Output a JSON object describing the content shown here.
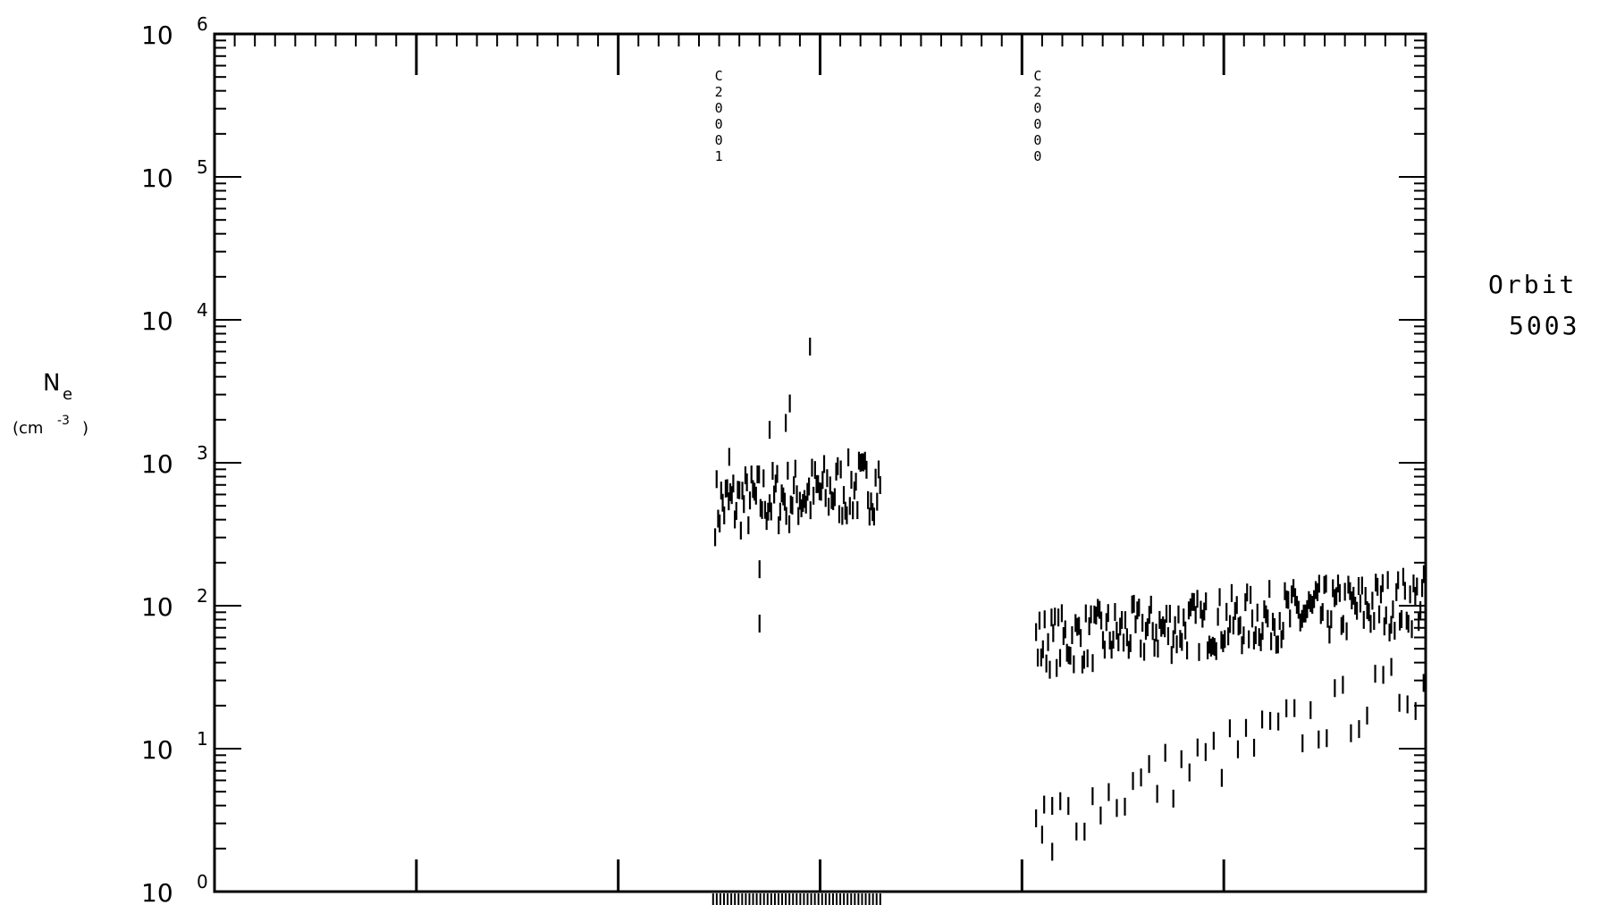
{
  "chart_data": {
    "type": "scatter",
    "title": "",
    "xlabel": "",
    "ylabel": "N",
    "ylabel_subscript": "e",
    "ylabel_units": "(cm",
    "ylabel_units_exp": "-3",
    "ylabel_units_close": ")",
    "yscale": "log",
    "ylim": [
      1,
      1000000
    ],
    "xlim": [
      0,
      6
    ],
    "grid": false,
    "legend": "none",
    "y_ticks": [
      {
        "base": "10",
        "exp": "0",
        "value": 1
      },
      {
        "base": "10",
        "exp": "1",
        "value": 10
      },
      {
        "base": "10",
        "exp": "2",
        "value": 100
      },
      {
        "base": "10",
        "exp": "3",
        "value": 1000
      },
      {
        "base": "10",
        "exp": "4",
        "value": 10000
      },
      {
        "base": "10",
        "exp": "5",
        "value": 100000
      },
      {
        "base": "10",
        "exp": "6",
        "value": 1000000
      }
    ],
    "x_major_ticks": [
      1,
      2,
      3,
      4,
      5
    ],
    "annotations": [
      {
        "text": "C20001",
        "x": 2.5
      },
      {
        "text": "C20000",
        "x": 4.08
      }
    ],
    "side_label": {
      "line1": "Orbit",
      "line2": "5003"
    },
    "marker_color": "#000000",
    "series": [
      {
        "segments": [
          {
            "x_start": 2.48,
            "x_end": 3.3,
            "base": 500,
            "trend": 0.15,
            "noise": 0.22,
            "step": 0.0075
          },
          {
            "x_start": 4.07,
            "x_end": 6.0,
            "base": 55,
            "trend": 0.3,
            "noise": 0.2,
            "step": 0.0085
          },
          {
            "x_start": 4.07,
            "x_end": 6.0,
            "base": 3,
            "trend": 1.0,
            "noise": 0.2,
            "step": 0.04
          }
        ],
        "points": [
          [
            2.95,
            6500
          ],
          [
            2.85,
            2600
          ],
          [
            2.83,
            1900
          ],
          [
            2.75,
            1700
          ],
          [
            2.55,
            1100
          ],
          [
            2.7,
            180
          ],
          [
            2.7,
            75
          ],
          [
            4.1,
            2.5
          ],
          [
            4.15,
            1.9
          ]
        ]
      }
    ],
    "bottom_bar": {
      "x_start": 2.47,
      "x_end": 3.3
    }
  }
}
